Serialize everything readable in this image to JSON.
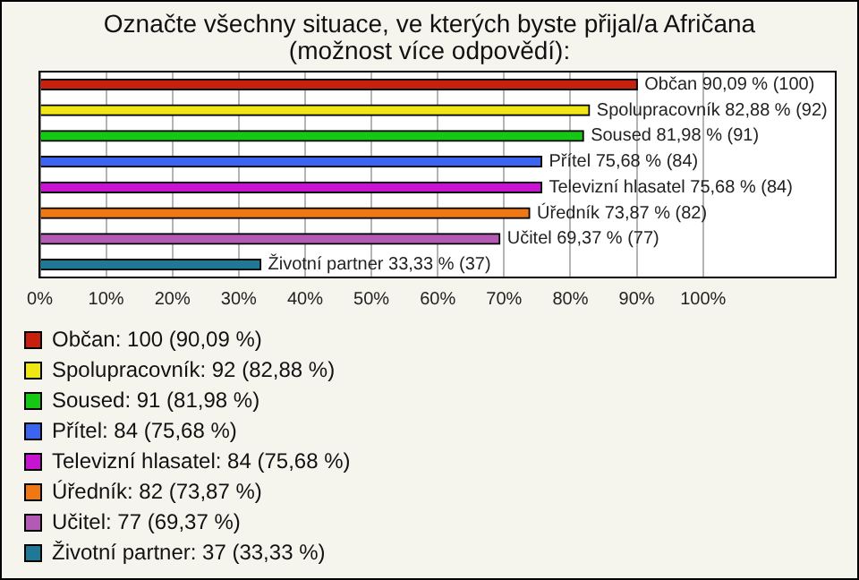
{
  "chart_data": {
    "type": "bar",
    "orientation": "horizontal",
    "title": "Označte všechny situace, ve kterých byste přijal/a Afričana (možnost více odpovědí):",
    "categories": [
      null,
      null,
      null,
      null,
      null,
      null,
      null,
      null
    ],
    "series": [
      {
        "name": "Občan: 100 (90,09 %)",
        "color": "#c8200f",
        "values": [
          90.09,
          null,
          null,
          null,
          null,
          null,
          null,
          null
        ],
        "value_labels": [
          "Občan 90,09 % (100)",
          null,
          null,
          null,
          null,
          null,
          null,
          null
        ]
      },
      {
        "name": "Spolupracovník: 92 (82,88 %)",
        "color": "#f0e614",
        "values": [
          null,
          82.88,
          null,
          null,
          null,
          null,
          null,
          null
        ],
        "value_labels": [
          null,
          "Spolupracovník 82,88 % (92)",
          null,
          null,
          null,
          null,
          null,
          null
        ]
      },
      {
        "name": "Soused: 91 (81,98 %)",
        "color": "#14c814",
        "values": [
          null,
          null,
          81.98,
          null,
          null,
          null,
          null,
          null
        ],
        "value_labels": [
          null,
          null,
          "Soused 81,98 % (91)",
          null,
          null,
          null,
          null,
          null
        ]
      },
      {
        "name": "Přítel: 84 (75,68 %)",
        "color": "#3c64f0",
        "values": [
          null,
          null,
          null,
          75.68,
          null,
          null,
          null,
          null
        ],
        "value_labels": [
          null,
          null,
          null,
          "Přítel 75,68 % (84)",
          null,
          null,
          null,
          null
        ]
      },
      {
        "name": "Televizní hlasatel: 84 (75,68 %)",
        "color": "#c814d2",
        "values": [
          null,
          null,
          null,
          null,
          75.68,
          null,
          null,
          null
        ],
        "value_labels": [
          null,
          null,
          null,
          null,
          "Televizní hlasatel 75,68 % (84)",
          null,
          null,
          null
        ]
      },
      {
        "name": "Úředník: 82 (73,87 %)",
        "color": "#f07814",
        "values": [
          null,
          null,
          null,
          null,
          null,
          73.87,
          null,
          null
        ],
        "value_labels": [
          null,
          null,
          null,
          null,
          null,
          "Úředník 73,87 % (82)",
          null,
          null
        ]
      },
      {
        "name": "Učitel: 77 (69,37 %)",
        "color": "#b45ab4",
        "values": [
          null,
          null,
          null,
          null,
          null,
          null,
          69.37,
          null
        ],
        "value_labels": [
          null,
          null,
          null,
          null,
          null,
          null,
          "Učitel 69,37 % (77)",
          null
        ]
      },
      {
        "name": "Životní partner: 37 (33,33 %)",
        "color": "#1e7896",
        "values": [
          null,
          null,
          null,
          null,
          null,
          null,
          null,
          33.33
        ],
        "value_labels": [
          null,
          null,
          null,
          null,
          null,
          null,
          null,
          "Životní partner 33,33 % (37)"
        ]
      }
    ],
    "xlim": [
      0,
      120
    ],
    "xticks": [
      {
        "value": 0,
        "label": "0%"
      },
      {
        "value": 10,
        "label": "10%"
      },
      {
        "value": 20,
        "label": "20%"
      },
      {
        "value": 30,
        "label": "30%"
      },
      {
        "value": 40,
        "label": "40%"
      },
      {
        "value": 50,
        "label": "50%"
      },
      {
        "value": 60,
        "label": "60%"
      },
      {
        "value": 70,
        "label": "70%"
      },
      {
        "value": 80,
        "label": "80%"
      },
      {
        "value": 90,
        "label": "90%"
      },
      {
        "value": 100,
        "label": "100%"
      }
    ],
    "grid": "x",
    "legend": "bottom",
    "tick_labels": "x"
  }
}
